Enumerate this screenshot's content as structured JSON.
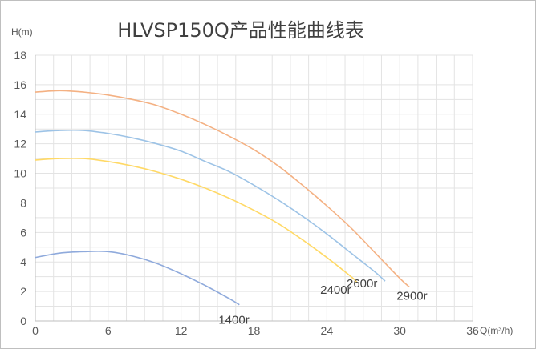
{
  "chart_data": {
    "type": "line",
    "title": "HLVSP150Q产品性能曲线表",
    "ylabel": "H(m)",
    "xlabel": "Q(m³/h)",
    "xlim": [
      0,
      36
    ],
    "ylim": [
      0,
      18
    ],
    "xticks": [
      "0",
      "6",
      "12",
      "18",
      "24",
      "30",
      "36"
    ],
    "yticks": [
      "0",
      "2",
      "4",
      "6",
      "8",
      "10",
      "12",
      "14",
      "16",
      "18"
    ],
    "grid": true,
    "series": [
      {
        "name": "2900r",
        "color": "#f4b183",
        "x": [
          0,
          2,
          4,
          6,
          8,
          10,
          12,
          14,
          16,
          18,
          20,
          22,
          24,
          26,
          28,
          30,
          30.8
        ],
        "y": [
          15.5,
          15.6,
          15.5,
          15.3,
          15.0,
          14.6,
          14.0,
          13.3,
          12.5,
          11.6,
          10.5,
          9.2,
          7.8,
          6.3,
          4.6,
          2.9,
          2.3
        ]
      },
      {
        "name": "2600r",
        "color": "#9dc3e6",
        "x": [
          0,
          2,
          4,
          6,
          8,
          10,
          12,
          14,
          16,
          18,
          20,
          22,
          24,
          26,
          28,
          28.8
        ],
        "y": [
          12.8,
          12.9,
          12.9,
          12.7,
          12.4,
          12.0,
          11.5,
          10.8,
          10.1,
          9.2,
          8.2,
          7.1,
          5.9,
          4.6,
          3.3,
          2.7
        ]
      },
      {
        "name": "2400r",
        "color": "#ffd966",
        "x": [
          0,
          2,
          4,
          6,
          8,
          10,
          12,
          14,
          16,
          18,
          20,
          22,
          24,
          26,
          26.5
        ],
        "y": [
          10.9,
          11.0,
          11.0,
          10.8,
          10.5,
          10.1,
          9.6,
          9.0,
          8.3,
          7.5,
          6.6,
          5.5,
          4.3,
          3.0,
          2.6
        ]
      },
      {
        "name": "1400r",
        "color": "#8faadc",
        "x": [
          0,
          2,
          4,
          6,
          8,
          10,
          12,
          14,
          16,
          16.8
        ],
        "y": [
          4.3,
          4.6,
          4.7,
          4.7,
          4.4,
          3.9,
          3.2,
          2.4,
          1.5,
          1.1
        ]
      }
    ]
  }
}
